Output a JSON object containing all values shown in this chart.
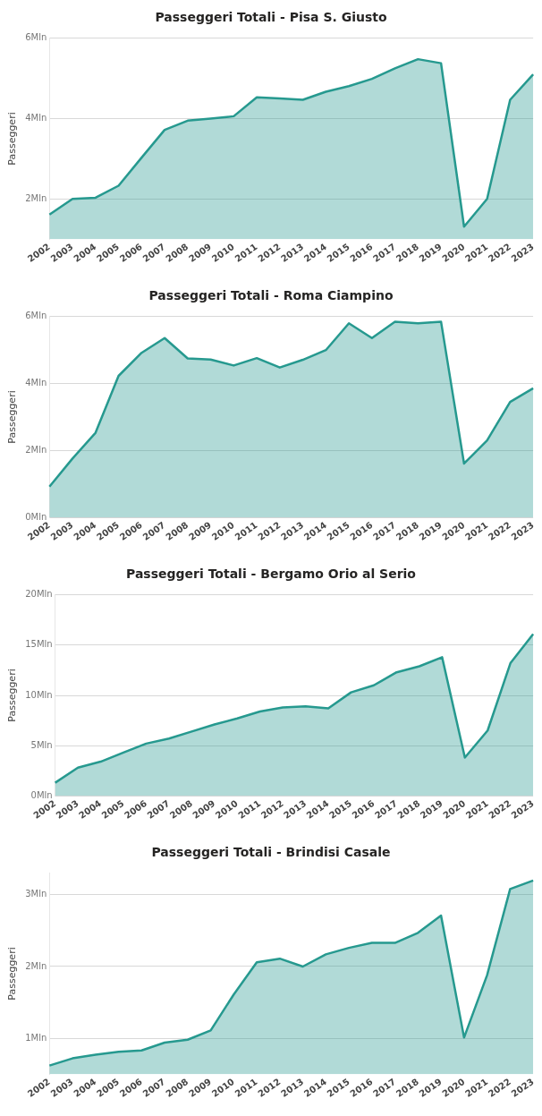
{
  "chart_data": [
    {
      "type": "area",
      "title": "Passeggeri Totali - Pisa S. Giusto",
      "ylabel": "Passeggeri",
      "categories": [
        "2002",
        "2003",
        "2004",
        "2005",
        "2006",
        "2007",
        "2008",
        "2009",
        "2010",
        "2011",
        "2012",
        "2013",
        "2014",
        "2015",
        "2016",
        "2017",
        "2018",
        "2019",
        "2020",
        "2021",
        "2022",
        "2023"
      ],
      "series": [
        {
          "color": "#26998f",
          "values": [
            1.61,
            2.0,
            2.03,
            2.33,
            3.03,
            3.72,
            3.95,
            4.0,
            4.06,
            4.53,
            4.5,
            4.47,
            4.67,
            4.81,
            4.99,
            5.25,
            5.48,
            5.38,
            1.31,
            2.0,
            4.47,
            5.1
          ]
        }
      ],
      "ylim": [
        1,
        6
      ],
      "yticks": [
        {
          "value": 2,
          "label": "2Mln"
        },
        {
          "value": 4,
          "label": "4Mln"
        },
        {
          "value": 6,
          "label": "6Mln"
        }
      ],
      "grid": "y",
      "legend": false
    },
    {
      "type": "area",
      "title": "Passeggeri Totali - Roma Ciampino",
      "ylabel": "Passeggeri",
      "categories": [
        "2002",
        "2003",
        "2004",
        "2005",
        "2006",
        "2007",
        "2008",
        "2009",
        "2010",
        "2011",
        "2012",
        "2013",
        "2014",
        "2015",
        "2016",
        "2017",
        "2018",
        "2019",
        "2020",
        "2021",
        "2022",
        "2023"
      ],
      "series": [
        {
          "color": "#26998f",
          "values": [
            0.92,
            1.76,
            2.53,
            4.23,
            4.92,
            5.36,
            4.75,
            4.72,
            4.54,
            4.76,
            4.48,
            4.71,
            5.0,
            5.8,
            5.36,
            5.85,
            5.8,
            5.85,
            1.61,
            2.3,
            3.45,
            3.86
          ]
        }
      ],
      "ylim": [
        0,
        6
      ],
      "yticks": [
        {
          "value": 0,
          "label": "0Mln"
        },
        {
          "value": 2,
          "label": "2Mln"
        },
        {
          "value": 4,
          "label": "4Mln"
        },
        {
          "value": 6,
          "label": "6Mln"
        }
      ],
      "grid": "y",
      "legend": false
    },
    {
      "type": "area",
      "title": "Passeggeri Totali - Bergamo Orio al Serio",
      "ylabel": "Passeggeri",
      "categories": [
        "2002",
        "2003",
        "2004",
        "2005",
        "2006",
        "2007",
        "2008",
        "2009",
        "2010",
        "2011",
        "2012",
        "2013",
        "2014",
        "2015",
        "2016",
        "2017",
        "2018",
        "2019",
        "2020",
        "2021",
        "2022",
        "2023"
      ],
      "series": [
        {
          "color": "#26998f",
          "values": [
            1.3,
            2.8,
            3.4,
            4.3,
            5.2,
            5.7,
            6.4,
            7.1,
            7.7,
            8.4,
            8.8,
            8.9,
            8.7,
            10.3,
            11.0,
            12.3,
            12.9,
            13.8,
            3.8,
            6.5,
            13.2,
            16.1
          ]
        }
      ],
      "ylim": [
        0,
        20
      ],
      "yticks": [
        {
          "value": 0,
          "label": "0Mln"
        },
        {
          "value": 5,
          "label": "5Mln"
        },
        {
          "value": 10,
          "label": "10Mln"
        },
        {
          "value": 15,
          "label": "15Mln"
        },
        {
          "value": 20,
          "label": "20Mln"
        }
      ],
      "grid": "y",
      "legend": false
    },
    {
      "type": "area",
      "title": "Passeggeri Totali - Brindisi Casale",
      "ylabel": "Passeggeri",
      "categories": [
        "2002",
        "2003",
        "2004",
        "2005",
        "2006",
        "2007",
        "2008",
        "2009",
        "2010",
        "2011",
        "2012",
        "2013",
        "2014",
        "2015",
        "2016",
        "2017",
        "2018",
        "2019",
        "2020",
        "2021",
        "2022",
        "2023"
      ],
      "series": [
        {
          "color": "#26998f",
          "values": [
            0.62,
            0.72,
            0.77,
            0.81,
            0.83,
            0.94,
            0.98,
            1.11,
            1.61,
            2.06,
            2.11,
            2.0,
            2.17,
            2.26,
            2.33,
            2.33,
            2.47,
            2.71,
            1.01,
            1.88,
            3.08,
            3.2
          ]
        }
      ],
      "ylim": [
        0.5,
        3.3
      ],
      "yticks": [
        {
          "value": 1,
          "label": "1Mln"
        },
        {
          "value": 2,
          "label": "2Mln"
        },
        {
          "value": 3,
          "label": "3Mln"
        }
      ],
      "grid": "y",
      "legend": false
    }
  ]
}
